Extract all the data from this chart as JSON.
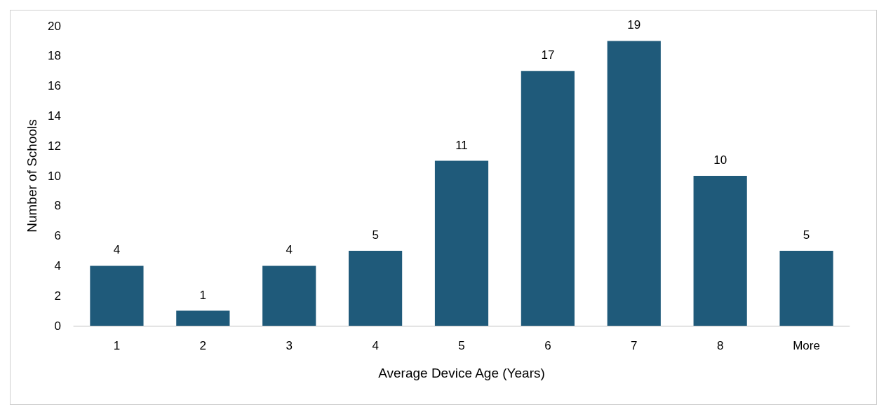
{
  "chart_data": {
    "type": "bar",
    "xlabel": "Average Device Age (Years)",
    "ylabel": "Number of Schools",
    "categories": [
      "1",
      "2",
      "3",
      "4",
      "5",
      "6",
      "7",
      "8",
      "More"
    ],
    "values": [
      4,
      1,
      4,
      5,
      11,
      17,
      19,
      10,
      5
    ],
    "color": "#1f5a7a",
    "ylim": [
      0,
      20
    ],
    "yticks": [
      0,
      2,
      4,
      6,
      8,
      10,
      12,
      14,
      16,
      18,
      20
    ],
    "grid": false,
    "data_labels": true
  }
}
